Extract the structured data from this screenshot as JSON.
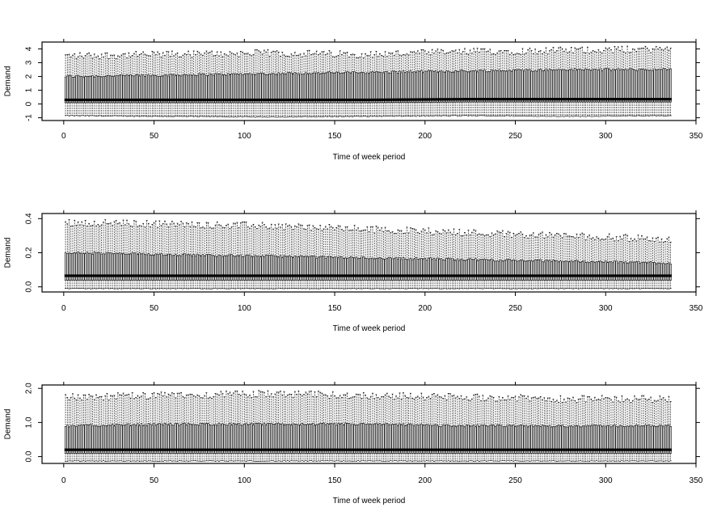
{
  "chart_data": [
    {
      "type": "boxplot",
      "title": "",
      "xlabel": "Time of week period",
      "ylabel": "Demand",
      "xlim": [
        -12,
        350
      ],
      "ylim": [
        -1.2,
        4.5
      ],
      "x_ticks": [
        0,
        50,
        100,
        150,
        200,
        250,
        300,
        350
      ],
      "y_ticks": [
        -1,
        0,
        1,
        2,
        3,
        4
      ],
      "n_periods": 336,
      "grid": false,
      "legend": "none",
      "summary": {
        "lower_whisker": [
          -0.85,
          -0.9,
          -0.95,
          -0.9,
          -0.85,
          -0.9,
          -0.85
        ],
        "q1": [
          0.1,
          0.1,
          0.1,
          0.1,
          0.15,
          0.15,
          0.15
        ],
        "median": [
          0.3,
          0.3,
          0.3,
          0.3,
          0.35,
          0.35,
          0.35
        ],
        "q3": [
          2.0,
          2.1,
          2.2,
          2.3,
          2.4,
          2.5,
          2.5
        ],
        "upper_whisker": [
          3.4,
          3.5,
          3.6,
          3.5,
          3.7,
          3.8,
          3.9
        ]
      }
    },
    {
      "type": "boxplot",
      "title": "",
      "xlabel": "Time of week period",
      "ylabel": "Demand",
      "xlim": [
        -12,
        350
      ],
      "ylim": [
        -0.03,
        0.43
      ],
      "x_ticks": [
        0,
        50,
        100,
        150,
        200,
        250,
        300,
        350
      ],
      "y_ticks": [
        0.0,
        0.2,
        0.4
      ],
      "y_tick_labels": [
        "0.0",
        "0.2",
        "0.4"
      ],
      "n_periods": 336,
      "grid": false,
      "legend": "none",
      "summary": {
        "lower_whisker": [
          -0.01,
          -0.01,
          -0.01,
          -0.01,
          -0.01,
          -0.01,
          -0.01
        ],
        "q1": [
          0.04,
          0.04,
          0.04,
          0.04,
          0.04,
          0.04,
          0.04
        ],
        "median": [
          0.065,
          0.065,
          0.065,
          0.065,
          0.065,
          0.065,
          0.065
        ],
        "q3": [
          0.2,
          0.19,
          0.18,
          0.17,
          0.16,
          0.15,
          0.14
        ],
        "upper_whisker": [
          0.37,
          0.36,
          0.35,
          0.33,
          0.31,
          0.29,
          0.27
        ]
      }
    },
    {
      "type": "boxplot",
      "title": "",
      "xlabel": "Time of week period",
      "ylabel": "Demand",
      "xlim": [
        -12,
        350
      ],
      "ylim": [
        -0.2,
        2.1
      ],
      "x_ticks": [
        0,
        50,
        100,
        150,
        200,
        250,
        300,
        350
      ],
      "y_ticks": [
        0.0,
        1.0,
        2.0
      ],
      "y_tick_labels": [
        "0.0",
        "1.0",
        "2.0"
      ],
      "n_periods": 336,
      "grid": false,
      "legend": "none",
      "summary": {
        "lower_whisker": [
          -0.13,
          -0.13,
          -0.13,
          -0.13,
          -0.13,
          -0.13,
          -0.13
        ],
        "q1": [
          0.1,
          0.1,
          0.1,
          0.1,
          0.1,
          0.1,
          0.1
        ],
        "median": [
          0.2,
          0.2,
          0.2,
          0.2,
          0.2,
          0.2,
          0.2
        ],
        "q3": [
          0.9,
          0.95,
          0.95,
          0.95,
          0.9,
          0.9,
          0.9
        ],
        "upper_whisker": [
          1.7,
          1.75,
          1.8,
          1.75,
          1.7,
          1.65,
          1.65
        ]
      }
    }
  ]
}
